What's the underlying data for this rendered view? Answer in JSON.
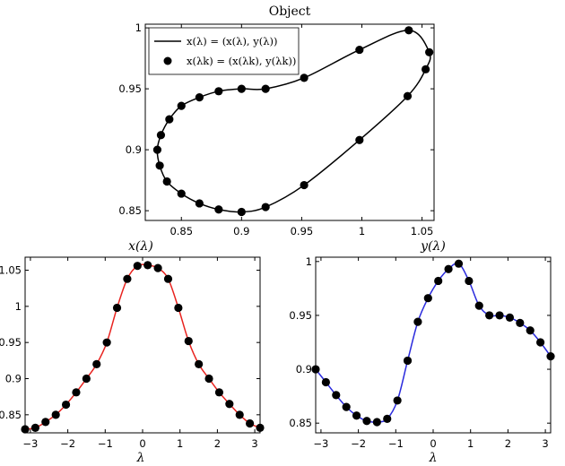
{
  "chart_data": [
    {
      "type": "scatter",
      "title": "Object",
      "xlabel": "",
      "ylabel": "",
      "xlim": [
        0.82,
        1.06
      ],
      "ylim": [
        0.842,
        1.003
      ],
      "xticks": [
        "0.85",
        "0.9",
        "0.95",
        "1",
        "1.05"
      ],
      "yticks": [
        "0.85",
        "0.9",
        "0.95",
        "1"
      ],
      "grid": false,
      "legend_position": "top-left",
      "line_color": "#000000",
      "marker_color": "#000000",
      "legend": [
        {
          "label": "x(λ) = (x(λ), y(λ))",
          "kind": "line"
        },
        {
          "label": "x(λk) = (x(λk), y(λk))",
          "kind": "marker"
        }
      ],
      "series": [
        {
          "points": [
            [
              1.039,
              0.998
            ],
            [
              1.056,
              0.98
            ],
            [
              1.053,
              0.966
            ],
            [
              1.038,
              0.944
            ],
            [
              0.998,
              0.908
            ],
            [
              0.952,
              0.871
            ],
            [
              0.92,
              0.853
            ],
            [
              0.9,
              0.849
            ],
            [
              0.881,
              0.851
            ],
            [
              0.865,
              0.856
            ],
            [
              0.85,
              0.864
            ],
            [
              0.838,
              0.874
            ],
            [
              0.832,
              0.887
            ],
            [
              0.83,
              0.9
            ],
            [
              0.833,
              0.912
            ],
            [
              0.84,
              0.925
            ],
            [
              0.85,
              0.936
            ],
            [
              0.865,
              0.943
            ],
            [
              0.881,
              0.948
            ],
            [
              0.9,
              0.95
            ],
            [
              0.92,
              0.95
            ],
            [
              0.952,
              0.959
            ],
            [
              0.998,
              0.982
            ]
          ]
        }
      ]
    },
    {
      "type": "line",
      "title": "x(λ)",
      "xlabel": "λ",
      "ylabel": "",
      "xlim": [
        -3.14159,
        3.14159
      ],
      "ylim": [
        0.825,
        1.068
      ],
      "xticks": [
        "−3",
        "−2",
        "−1",
        "0",
        "1",
        "2",
        "3"
      ],
      "yticks": [
        "0.85",
        "0.9",
        "0.95",
        "1",
        "1.05"
      ],
      "grid": false,
      "line_color": "#e8231f",
      "marker_color": "#000000",
      "series": [
        {
          "x": [
            -3.1416,
            -2.8684,
            -2.5952,
            -2.322,
            -2.0489,
            -1.7757,
            -1.5025,
            -1.2293,
            -0.9562,
            -0.683,
            -0.4098,
            -0.1366,
            0.1366,
            0.4098,
            0.683,
            0.9562,
            1.2293,
            1.5025,
            1.7757,
            2.0489,
            2.322,
            2.5952,
            2.8684,
            3.1416
          ],
          "y": [
            0.83,
            0.832,
            0.84,
            0.85,
            0.864,
            0.881,
            0.9,
            0.92,
            0.95,
            0.998,
            1.038,
            1.056,
            1.057,
            1.053,
            1.038,
            0.998,
            0.952,
            0.92,
            0.9,
            0.881,
            0.865,
            0.85,
            0.838,
            0.832
          ]
        }
      ]
    },
    {
      "type": "line",
      "title": "y(λ)",
      "xlabel": "λ",
      "ylabel": "",
      "xlim": [
        -3.14159,
        3.14159
      ],
      "ylim": [
        0.841,
        1.004
      ],
      "xticks": [
        "−3",
        "−2",
        "−1",
        "0",
        "1",
        "2",
        "3"
      ],
      "yticks": [
        "0.85",
        "0.9",
        "0.95",
        "1"
      ],
      "grid": false,
      "line_color": "#2a2add",
      "marker_color": "#000000",
      "series": [
        {
          "x": [
            -3.1416,
            -2.8684,
            -2.5952,
            -2.322,
            -2.0489,
            -1.7757,
            -1.5025,
            -1.2293,
            -0.9562,
            -0.683,
            -0.4098,
            -0.1366,
            0.1366,
            0.4098,
            0.683,
            0.9562,
            1.2293,
            1.5025,
            1.7757,
            2.0489,
            2.322,
            2.5952,
            2.8684,
            3.1416
          ],
          "y": [
            0.9,
            0.888,
            0.876,
            0.865,
            0.857,
            0.852,
            0.851,
            0.854,
            0.871,
            0.908,
            0.944,
            0.966,
            0.982,
            0.993,
            0.998,
            0.982,
            0.959,
            0.95,
            0.95,
            0.948,
            0.943,
            0.936,
            0.925,
            0.912
          ]
        }
      ]
    }
  ]
}
